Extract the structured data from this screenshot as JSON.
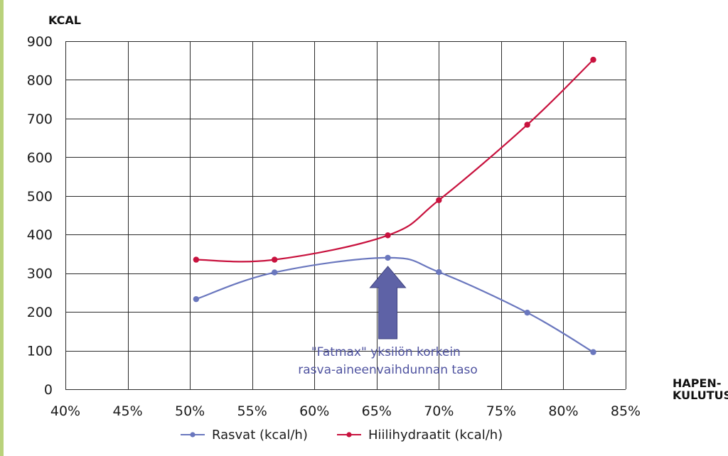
{
  "chart_data": {
    "type": "line",
    "ylabel": "KCAL",
    "xlabel": [
      "HAPEN-",
      "KULUTUS"
    ],
    "x_ticks": [
      "40%",
      "45%",
      "50%",
      "55%",
      "60%",
      "65%",
      "70%",
      "75%",
      "80%",
      "85%"
    ],
    "y_ticks": [
      "0",
      "100",
      "200",
      "300",
      "400",
      "500",
      "600",
      "700",
      "800",
      "900"
    ],
    "xlim": [
      40,
      85
    ],
    "ylim": [
      0,
      900
    ],
    "grid": true,
    "legend_position": "bottom",
    "series": [
      {
        "name": "Rasvat (kcal/h)",
        "color": "#6a77be",
        "x": [
          50.5,
          56.8,
          65.9,
          70.0,
          77.1,
          82.4
        ],
        "y": [
          233,
          302,
          340,
          303,
          198,
          96
        ]
      },
      {
        "name": "Hiilihydraatit (kcal/h)",
        "color": "#c8123e",
        "x": [
          50.5,
          56.8,
          65.9,
          70.0,
          77.1,
          82.4
        ],
        "y": [
          335,
          335,
          398,
          489,
          684,
          852
        ]
      }
    ],
    "annotation": {
      "lines": [
        "\"Fatmax\" yksilön korkein",
        "rasva-aineenvaihdunnan taso"
      ],
      "arrow_x": 65.9,
      "arrow_color": "#5e62a6",
      "text_color": "#4f53a0"
    }
  }
}
